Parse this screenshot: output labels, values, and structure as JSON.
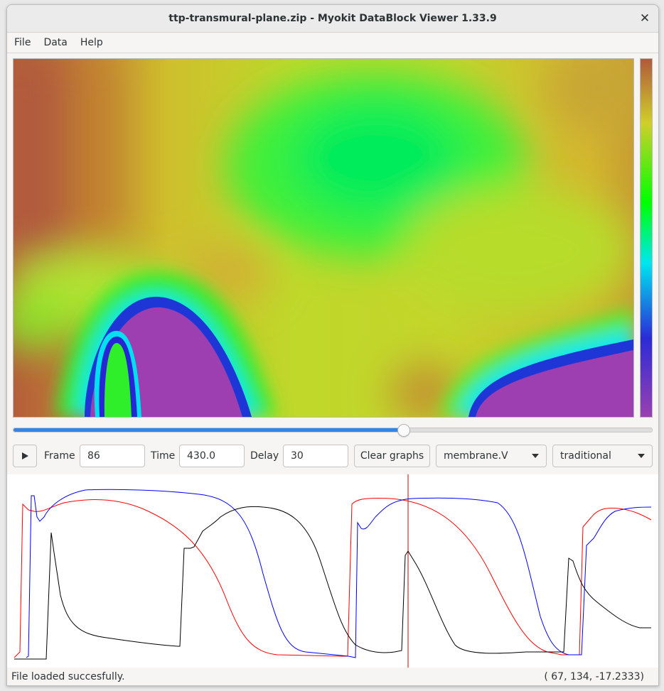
{
  "window": {
    "title": "ttp-transmural-plane.zip - Myokit DataBlock Viewer 1.33.9",
    "close_icon": "close-icon"
  },
  "menu": {
    "items": [
      {
        "label": "File"
      },
      {
        "label": "Data"
      },
      {
        "label": "Help"
      }
    ]
  },
  "viewer": {
    "colormap_icon": "heatmap-image",
    "colorbar_colors": [
      "#b05a3c",
      "#cfcf2a",
      "#00ff00",
      "#00e6f0",
      "#2b2bd6",
      "#9a40b0"
    ]
  },
  "playback": {
    "progress": 0.61
  },
  "controls": {
    "play_icon": "play-icon",
    "frame_label": "Frame",
    "frame_value": "86",
    "time_label": "Time",
    "time_value": "430.0",
    "delay_label": "Delay",
    "delay_value": "30",
    "clear_graphs_label": "Clear graphs",
    "variable_selected": "membrane.V",
    "colormap_selected": "traditional"
  },
  "graph": {
    "series_colors": [
      "#ff0000",
      "#0000ff",
      "#000000"
    ],
    "cursor_color": "#cc0000"
  },
  "status": {
    "message": "File loaded succesfully.",
    "coords": "( 67,  134, -17.2333)"
  }
}
